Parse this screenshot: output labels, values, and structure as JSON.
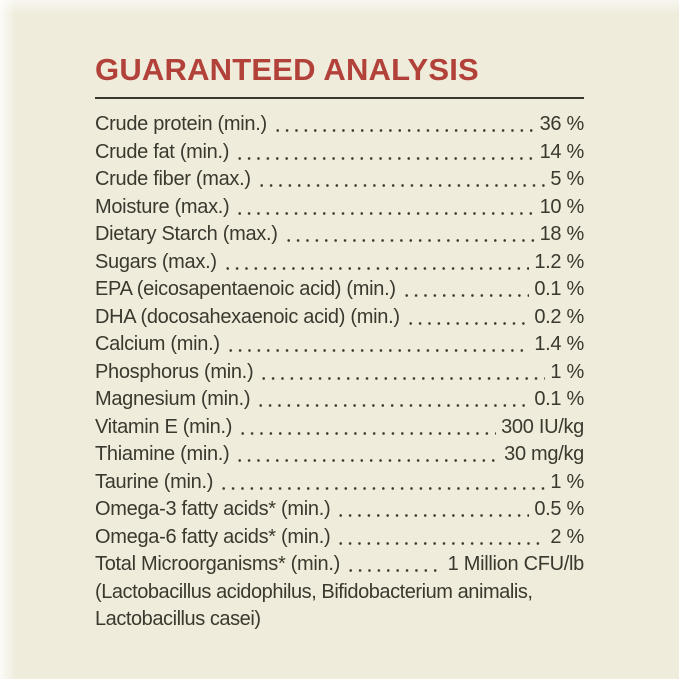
{
  "colors": {
    "background": "#efecdc",
    "accent": "#b2413a",
    "text": "#3b392e"
  },
  "header": {
    "title": "GUARANTEED ANALYSIS"
  },
  "analysis": {
    "rows": [
      {
        "label": "Crude protein (min.)",
        "value": "36 %"
      },
      {
        "label": "Crude fat (min.)",
        "value": "14 %"
      },
      {
        "label": "Crude fiber (max.)",
        "value": "5 %"
      },
      {
        "label": "Moisture (max.)",
        "value": "10 %"
      },
      {
        "label": "Dietary Starch (max.)",
        "value": "18 %"
      },
      {
        "label": "Sugars (max.)",
        "value": "1.2 %"
      },
      {
        "label": "EPA (eicosapentaenoic acid) (min.)",
        "value": "0.1 %"
      },
      {
        "label": "DHA (docosahexaenoic acid) (min.)",
        "value": "0.2 %"
      },
      {
        "label": "Calcium (min.)",
        "value": "1.4 %"
      },
      {
        "label": "Phosphorus (min.)",
        "value": "1 %"
      },
      {
        "label": "Magnesium (min.)",
        "value": "0.1 %"
      },
      {
        "label": "Vitamin E (min.)",
        "value": "300 IU/kg"
      },
      {
        "label": "Thiamine (min.)",
        "value": "30 mg/kg"
      },
      {
        "label": "Taurine (min.)",
        "value": "1 %"
      },
      {
        "label": "Omega-3 fatty acids* (min.)",
        "value": "0.5 %"
      },
      {
        "label": "Omega-6 fatty acids* (min.)",
        "value": "2 %"
      },
      {
        "label": "Total Microorganisms* (min.)",
        "value": "1 Million CFU/lb"
      }
    ],
    "footnote_lines": [
      "(Lactobacillus acidophilus, Bifidobacterium animalis,",
      "Lactobacillus casei)"
    ]
  }
}
